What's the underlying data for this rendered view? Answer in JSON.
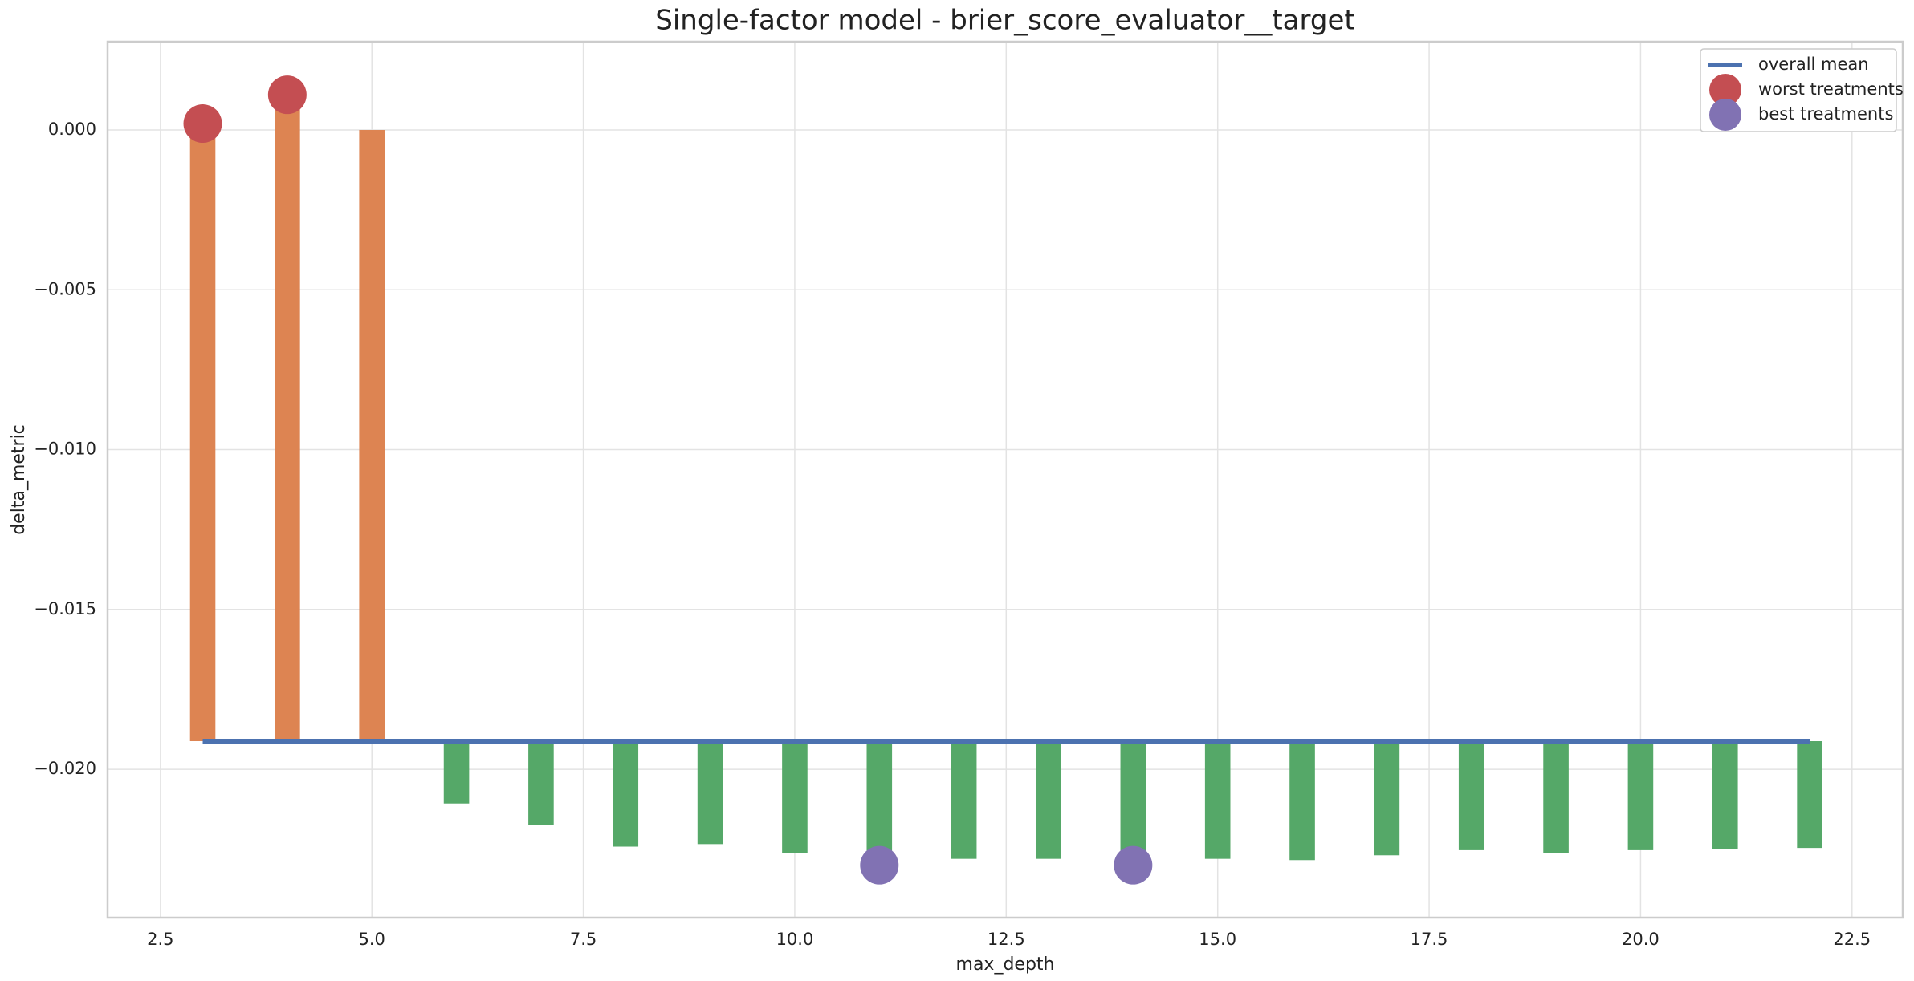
{
  "chart_data": {
    "type": "bar",
    "title": "Single-factor model - brier_score_evaluator__target",
    "x_label": "max_depth",
    "y_label": "delta_metric",
    "x": [
      3,
      4,
      5,
      6,
      7,
      8,
      9,
      10,
      11,
      12,
      13,
      14,
      15,
      16,
      17,
      18,
      19,
      20,
      21,
      22
    ],
    "values": [
      0.0002,
      0.0011,
      0.0,
      -0.02107,
      -0.02173,
      -0.02242,
      -0.02234,
      -0.02261,
      -0.02296,
      -0.0228,
      -0.0228,
      -0.02296,
      -0.0228,
      -0.02284,
      -0.02269,
      -0.02253,
      -0.02261,
      -0.02253,
      -0.02249,
      -0.02246
    ],
    "bar_colors": [
      "#dd8452",
      "#55a868"
    ],
    "series": [
      {
        "name": "overall mean",
        "type": "line",
        "color": "#4c72b0",
        "x": [
          3,
          22
        ],
        "values": [
          -0.01912,
          -0.01912
        ]
      },
      {
        "name": "worst treatments",
        "type": "scatter",
        "color": "#c44e52",
        "x": [
          3,
          4
        ],
        "values": [
          0.0002,
          0.0011
        ]
      },
      {
        "name": "best treatments",
        "type": "scatter",
        "color": "#8172b3",
        "x": [
          11,
          14
        ],
        "values": [
          -0.023,
          -0.023
        ]
      }
    ],
    "xlim": [
      1.875,
      23.1
    ],
    "ylim": [
      -0.02464,
      0.00276
    ],
    "xticks": [
      2.5,
      {
        "value": 5,
        "label": "5.0"
      },
      7.5,
      {
        "value": 10,
        "label": "10.0"
      },
      12.5,
      {
        "value": 15,
        "label": "15.0"
      },
      17.5,
      {
        "value": 20,
        "label": "20.0"
      },
      22.5
    ],
    "yticks": [
      {
        "value": 0,
        "label": "0.000"
      },
      {
        "value": -0.005,
        "label": "−0.005"
      },
      {
        "value": -0.01,
        "label": "−0.010"
      },
      {
        "value": -0.015,
        "label": "−0.015"
      },
      {
        "value": -0.02,
        "label": "−0.020"
      }
    ],
    "grid": true,
    "legend": "upper right"
  }
}
